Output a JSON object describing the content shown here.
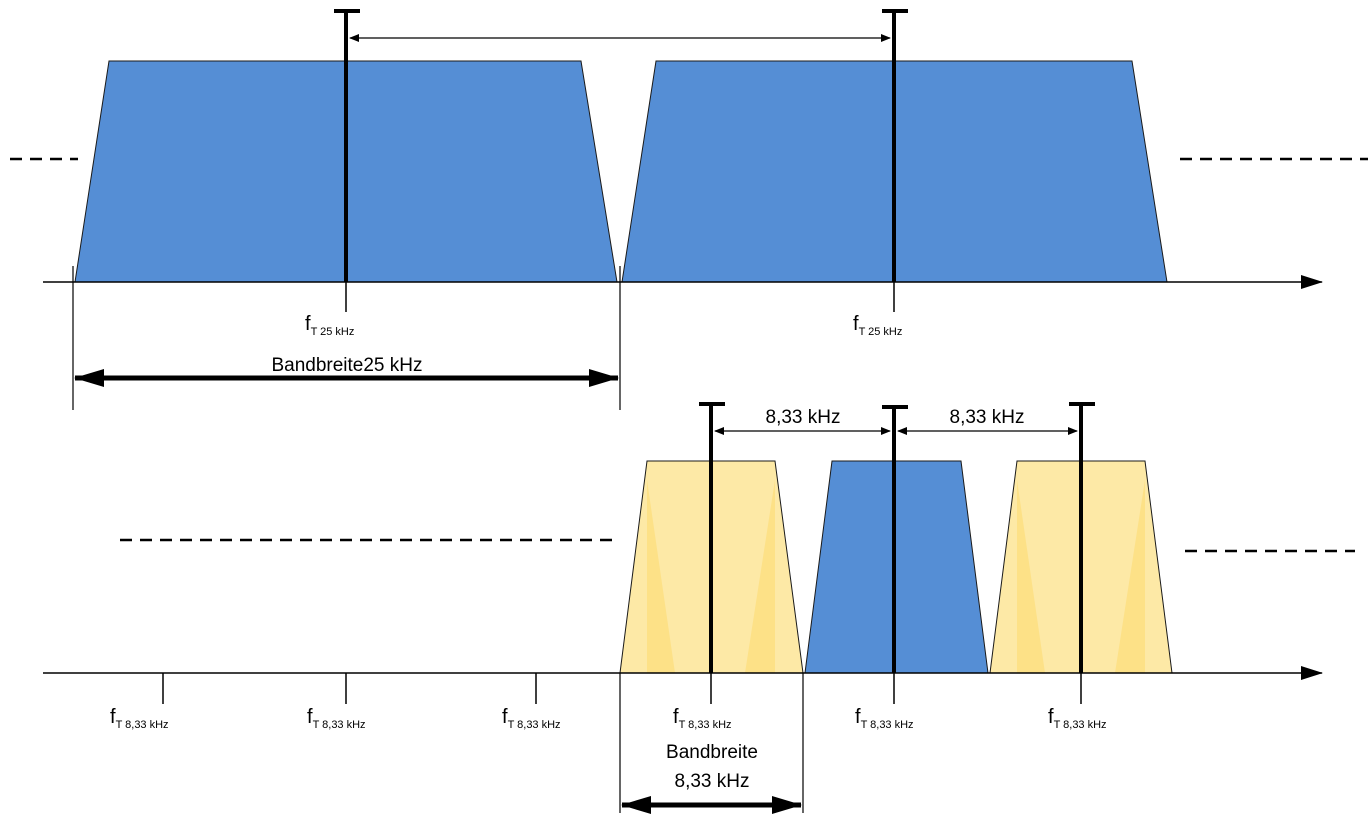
{
  "top": {
    "carrier_labels": [
      {
        "main": "f",
        "sub": "T 25 kHz"
      },
      {
        "main": "f",
        "sub": "T 25 kHz"
      }
    ],
    "bandwidth_label": "Bandbreite25 kHz"
  },
  "bottom": {
    "spacing_labels": [
      "8,33 kHz",
      "8,33 kHz"
    ],
    "carrier_labels": [
      {
        "main": "f",
        "sub": "T 8,33 kHz"
      },
      {
        "main": "f",
        "sub": "T 8,33 kHz"
      },
      {
        "main": "f",
        "sub": "T 8,33 kHz"
      },
      {
        "main": "f",
        "sub": "T 8,33 kHz"
      },
      {
        "main": "f",
        "sub": "T 8,33 kHz"
      },
      {
        "main": "f",
        "sub": "T 8,33 kHz"
      }
    ],
    "bandwidth_label_line1": "Bandbreite",
    "bandwidth_label_line2": "8,33 kHz"
  },
  "colors": {
    "blue_channel": "#558ed5",
    "yellow_channel": "#fde9a6",
    "yellow_shade": "#fddf80",
    "line": "#000000"
  }
}
